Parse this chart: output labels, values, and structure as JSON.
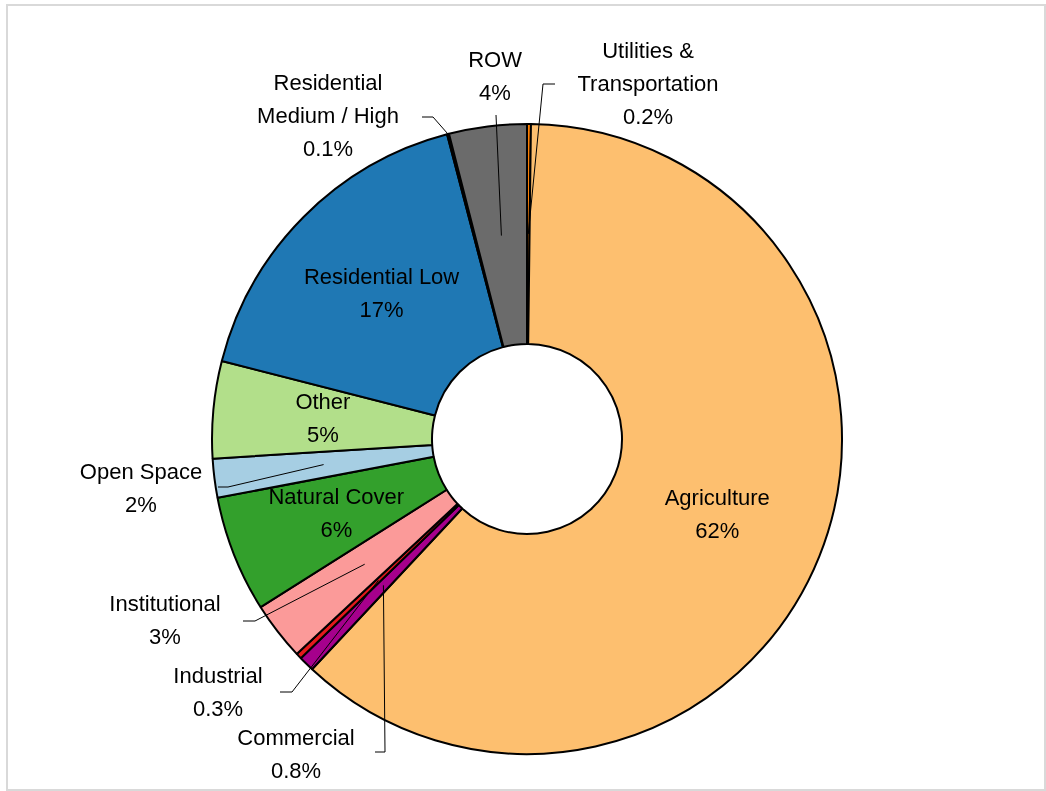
{
  "chart_data": {
    "type": "donut",
    "categories": [
      "Utilities & Transportation",
      "Agriculture",
      "Commercial",
      "Industrial",
      "Institutional",
      "Natural Cover",
      "Open Space",
      "Other",
      "Residential Low",
      "Residential Medium / High",
      "ROW"
    ],
    "values": [
      0.2,
      62,
      0.8,
      0.3,
      3,
      6,
      2,
      5,
      17,
      0.1,
      4
    ],
    "value_labels": [
      "0.2%",
      "62%",
      "0.8%",
      "0.3%",
      "3%",
      "6%",
      "2%",
      "5%",
      "17%",
      "0.1%",
      "4%"
    ],
    "colors": [
      "#ff7f00",
      "#fdbf6f",
      "#a6008c",
      "#e31a1c",
      "#fb9a99",
      "#33a02c",
      "#a6cee3",
      "#b2df8a",
      "#1f78b4",
      "#1a1a1a",
      "#6b6b6b"
    ]
  }
}
